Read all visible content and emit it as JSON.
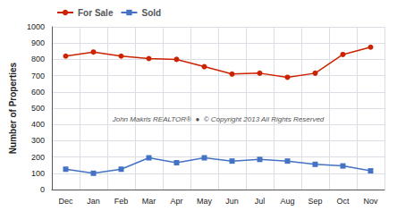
{
  "chart_data": {
    "type": "line",
    "categories": [
      "Dec",
      "Jan",
      "Feb",
      "Mar",
      "Apr",
      "May",
      "Jun",
      "Jul",
      "Aug",
      "Sep",
      "Oct",
      "Nov"
    ],
    "series": [
      {
        "name": "For Sale",
        "color": "#cc2200",
        "marker": "circle",
        "values": [
          820,
          845,
          820,
          805,
          800,
          755,
          710,
          715,
          690,
          715,
          830,
          875
        ]
      },
      {
        "name": "Sold",
        "color": "#4472c4",
        "marker": "square",
        "values": [
          125,
          100,
          125,
          195,
          165,
          195,
          175,
          185,
          175,
          155,
          145,
          115
        ]
      }
    ],
    "ylabel": "Number of Properties",
    "ylim": [
      0,
      1000
    ],
    "yticks": [
      0,
      100,
      200,
      300,
      400,
      500,
      600,
      700,
      800,
      900,
      1000
    ],
    "grid": true,
    "legend": "upper left",
    "annotations": [
      "John Makris REALTOR®  ●  © Copyright 2013 All Rights Reserved"
    ]
  }
}
